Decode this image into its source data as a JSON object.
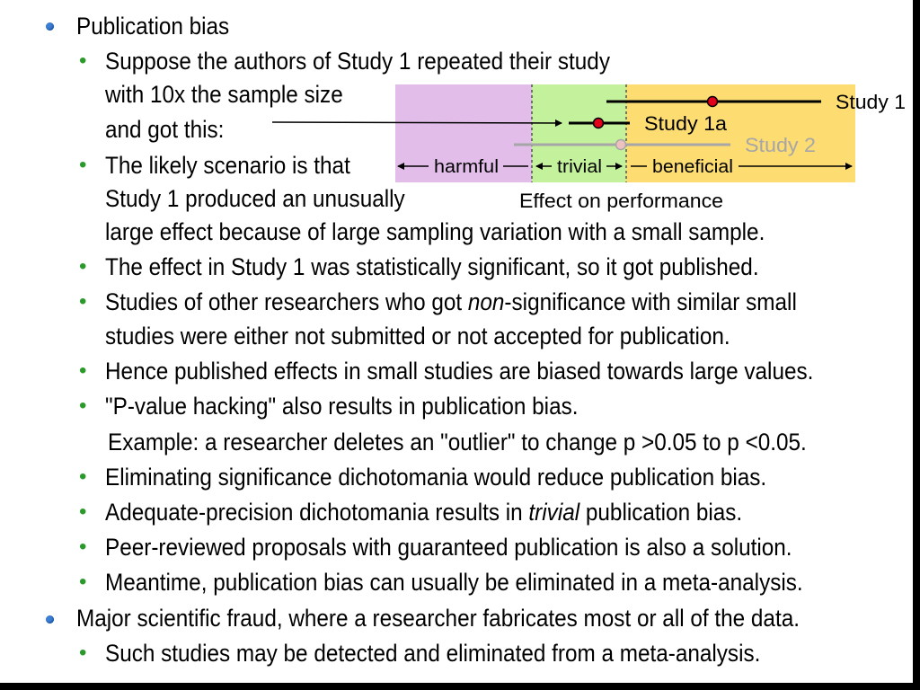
{
  "level1": [
    "Publication bias",
    "Major scientific fraud, where a researcher fabricates most or all of the data."
  ],
  "bullets": {
    "suppose_1": "Suppose the authors of Study 1 repeated their study",
    "suppose_2": "with 10x the sample size",
    "suppose_3": "and got this:",
    "likely_1": "The likely scenario is that",
    "likely_2": "Study 1 produced an unusually",
    "likely_3": "large effect because of large sampling variation with a small sample.",
    "effect_sig": "The effect in Study 1 was statistically significant, so it got published.",
    "studies_1_pre": "Studies of other researchers who got ",
    "studies_1_em": "non",
    "studies_1_post": "-significance with similar small",
    "studies_2": "studies were either not submitted or not accepted for publication.",
    "hence": "Hence published effects in small studies are biased towards large values.",
    "phacking": "\"P-value hacking\" also results in publication bias.",
    "example": "Example: a researcher deletes an \"outlier\" to change p >0.05 to p <0.05.",
    "eliminating": "Eliminating significance dichotomania would reduce publication bias.",
    "adequate_pre": "Adequate-precision dichotomania results in ",
    "adequate_em": "trivial",
    "adequate_post": " publication bias.",
    "peer": "Peer-reviewed proposals with guaranteed publication is also a solution.",
    "meantime": "Meantime, publication bias can usually be eliminated in a meta-analysis.",
    "such": "Such studies may be detected and eliminated from a meta-analysis."
  },
  "diagram": {
    "harmful": "harmful",
    "trivial": "trivial",
    "beneficial": "beneficial",
    "axis_title": "Effect on performance",
    "study1": "Study 1",
    "study1a": "Study 1a",
    "study2": "Study 2"
  },
  "colors": {
    "harmful_zone": "#e3bde9",
    "trivial_zone": "#c4f29c",
    "beneficial_zone": "#fddc72",
    "bullet_level1": "#3c7fd6",
    "bullet_level2": "#2a9a2a",
    "point": "#e3001b",
    "study2": "#a6a6a6"
  }
}
